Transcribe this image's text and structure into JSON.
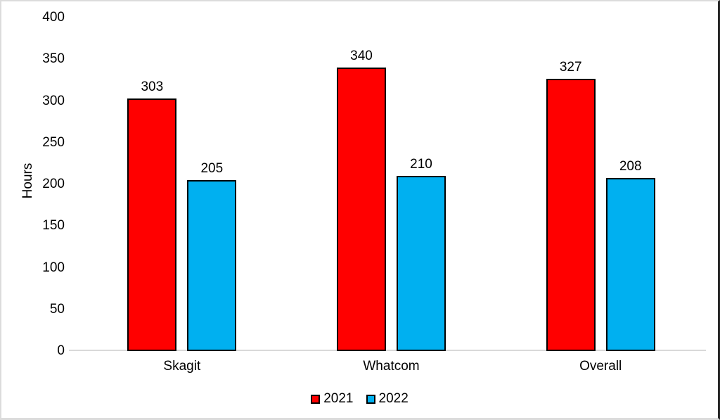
{
  "chart_data": {
    "type": "bar",
    "title": "",
    "categories": [
      "Skagit",
      "Whatcom",
      "Overall"
    ],
    "series": [
      {
        "name": "2021",
        "color": "#ff0000",
        "values": [
          303,
          340,
          327
        ]
      },
      {
        "name": "2022",
        "color": "#00b0f0",
        "values": [
          205,
          210,
          208
        ]
      }
    ],
    "xlabel": "",
    "ylabel": "Hours",
    "ylim": [
      0,
      400
    ],
    "yticks": [
      0,
      50,
      100,
      150,
      200,
      250,
      300,
      350,
      400
    ],
    "grid": false,
    "data_labels": true,
    "legend_position": "bottom",
    "bar_border_color": "#000000",
    "axis_line_color": "#d9d9d9"
  }
}
